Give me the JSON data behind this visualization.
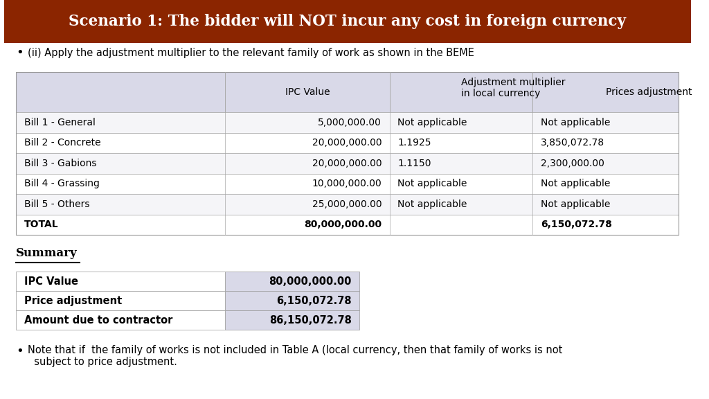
{
  "title": "Scenario 1: The bidder will NOT incur any cost in foreign currency",
  "title_bg": "#8B2500",
  "title_color": "#FFFFFF",
  "bullet1": "(ii) Apply the adjustment multiplier to the relevant family of work as shown in the BEME",
  "table_headers": [
    "",
    "IPC Value",
    "Adjustment multiplier\nin local currency",
    "Prices adjustment"
  ],
  "table_rows": [
    [
      "Bill 1 - General",
      "5,000,000.00",
      "Not applicable",
      "Not applicable"
    ],
    [
      "Bill 2 - Concrete",
      "20,000,000.00",
      "1.1925",
      "3,850,072.78"
    ],
    [
      "Bill 3 - Gabions",
      "20,000,000.00",
      "1.1150",
      "2,300,000.00"
    ],
    [
      "Bill 4 - Grassing",
      "10,000,000.00",
      "Not applicable",
      "Not applicable"
    ],
    [
      "Bill 5 - Others",
      "25,000,000.00",
      "Not applicable",
      "Not applicable"
    ],
    [
      "TOTAL",
      "80,000,000.00",
      "",
      "6,150,072.78"
    ]
  ],
  "table_header_bg": "#D9D9E8",
  "table_row_bg": "#FFFFFF",
  "table_alt_bg": "#FFFFFF",
  "summary_title": "Summary",
  "summary_rows": [
    [
      "IPC Value",
      "80,000,000.00"
    ],
    [
      "Price adjustment",
      "6,150,072.78"
    ],
    [
      "Amount due to contractor",
      "86,150,072.78"
    ]
  ],
  "summary_bg": "#D9D9E8",
  "bullet2": "Note that if  the family of works is not included in Table A (local currency, then that family of works is not\n  subject to price adjustment.",
  "bg_color": "#FFFFFF"
}
